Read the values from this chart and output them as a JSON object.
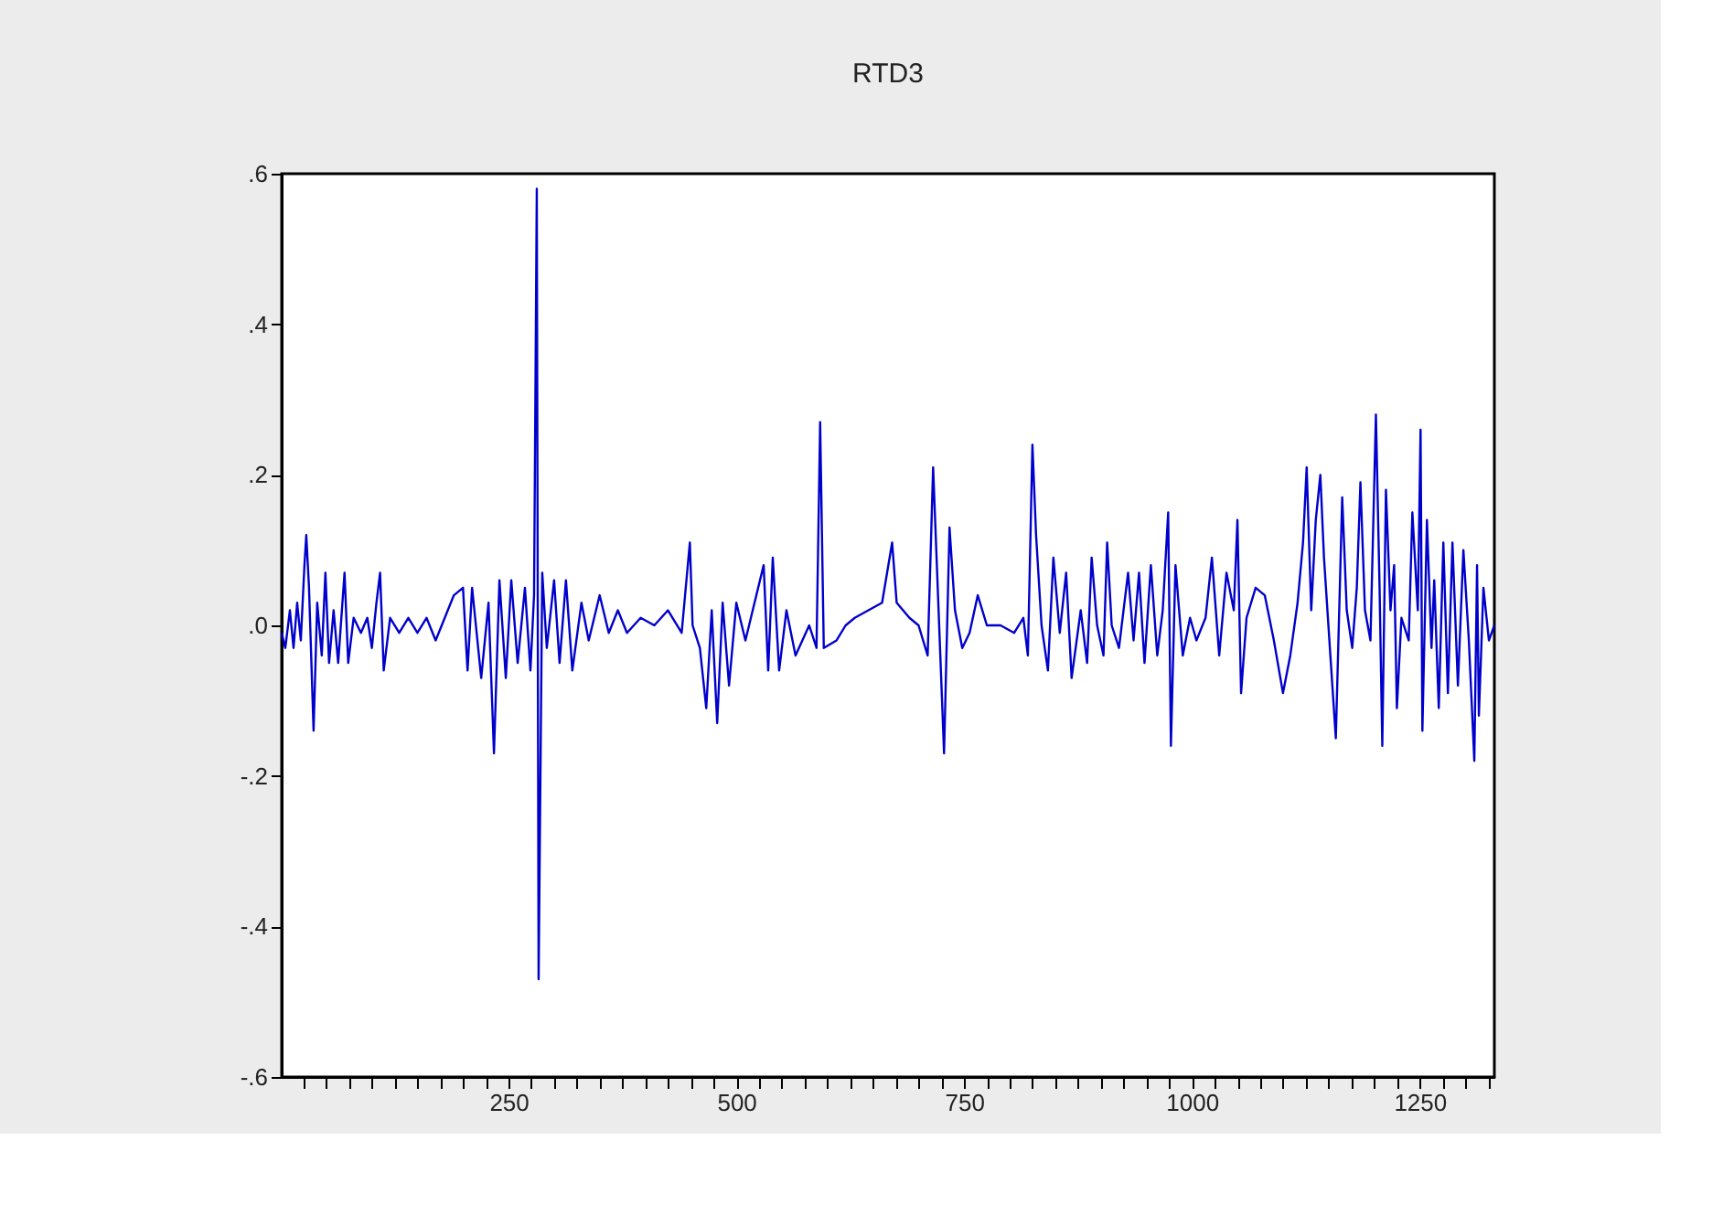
{
  "chart_data": {
    "type": "line",
    "title": "RTD3",
    "x": [
      1,
      5,
      10,
      14,
      18,
      22,
      26,
      28,
      31,
      36,
      40,
      45,
      49,
      53,
      58,
      63,
      70,
      74,
      80,
      88,
      95,
      100,
      105,
      109,
      113,
      120,
      130,
      140,
      150,
      160,
      170,
      180,
      190,
      200,
      205,
      210,
      220,
      228,
      234,
      240,
      247,
      253,
      260,
      268,
      274,
      278,
      281,
      283,
      287,
      292,
      300,
      306,
      313,
      320,
      330,
      338,
      350,
      360,
      370,
      380,
      395,
      410,
      425,
      440,
      449,
      452,
      460,
      467,
      473,
      479,
      485,
      492,
      500,
      510,
      520,
      530,
      535,
      540,
      547,
      555,
      565,
      580,
      588,
      592,
      596,
      610,
      620,
      630,
      645,
      660,
      671,
      676,
      690,
      700,
      710,
      716,
      722,
      728,
      734,
      740,
      748,
      756,
      765,
      775,
      790,
      805,
      815,
      820,
      825,
      829,
      835,
      842,
      848,
      855,
      862,
      868,
      878,
      885,
      890,
      896,
      903,
      907,
      912,
      920,
      930,
      936,
      942,
      948,
      955,
      962,
      968,
      974,
      977,
      982,
      990,
      998,
      1005,
      1015,
      1022,
      1030,
      1038,
      1046,
      1050,
      1054,
      1060,
      1070,
      1080,
      1090,
      1100,
      1108,
      1116,
      1122,
      1126,
      1131,
      1136,
      1141,
      1145,
      1152,
      1158,
      1165,
      1170,
      1176,
      1181,
      1185,
      1190,
      1196,
      1202,
      1206,
      1209,
      1213,
      1218,
      1222,
      1225,
      1230,
      1238,
      1242,
      1248,
      1251,
      1253,
      1258,
      1263,
      1266,
      1271,
      1276,
      1281,
      1286,
      1292,
      1298,
      1304,
      1310,
      1313,
      1315,
      1320,
      1326,
      1332
    ],
    "series": [
      {
        "color": "#0000cc",
        "values": [
          -0.01,
          -0.03,
          0.02,
          -0.03,
          0.03,
          -0.02,
          0.08,
          0.12,
          0.05,
          -0.14,
          0.03,
          -0.04,
          0.07,
          -0.05,
          0.02,
          -0.05,
          0.07,
          -0.05,
          0.01,
          -0.01,
          0.01,
          -0.03,
          0.03,
          0.07,
          -0.06,
          0.01,
          -0.01,
          0.01,
          -0.01,
          0.01,
          -0.02,
          0.01,
          0.04,
          0.05,
          -0.06,
          0.05,
          -0.07,
          0.03,
          -0.17,
          0.06,
          -0.07,
          0.06,
          -0.05,
          0.05,
          -0.06,
          0.04,
          0.58,
          -0.47,
          0.07,
          -0.03,
          0.06,
          -0.05,
          0.06,
          -0.06,
          0.03,
          -0.02,
          0.04,
          -0.01,
          0.02,
          -0.01,
          0.01,
          0.0,
          0.02,
          -0.01,
          0.11,
          0.0,
          -0.03,
          -0.11,
          0.02,
          -0.13,
          0.03,
          -0.08,
          0.03,
          -0.02,
          0.03,
          0.08,
          -0.06,
          0.09,
          -0.06,
          0.02,
          -0.04,
          0.0,
          -0.03,
          0.27,
          -0.03,
          -0.02,
          0.0,
          0.01,
          0.02,
          0.03,
          0.11,
          0.03,
          0.01,
          0.0,
          -0.04,
          0.21,
          0.02,
          -0.17,
          0.13,
          0.02,
          -0.03,
          -0.01,
          0.04,
          0.0,
          0.0,
          -0.01,
          0.01,
          -0.04,
          0.24,
          0.12,
          0.0,
          -0.06,
          0.09,
          -0.01,
          0.07,
          -0.07,
          0.02,
          -0.05,
          0.09,
          0.0,
          -0.04,
          0.11,
          0.0,
          -0.03,
          0.07,
          -0.02,
          0.07,
          -0.05,
          0.08,
          -0.04,
          0.02,
          0.15,
          -0.16,
          0.08,
          -0.04,
          0.01,
          -0.02,
          0.01,
          0.09,
          -0.04,
          0.07,
          0.02,
          0.14,
          -0.09,
          0.01,
          0.05,
          0.04,
          -0.02,
          -0.09,
          -0.04,
          0.03,
          0.11,
          0.21,
          0.02,
          0.14,
          0.2,
          0.09,
          -0.04,
          -0.15,
          0.17,
          0.02,
          -0.03,
          0.05,
          0.19,
          0.02,
          -0.02,
          0.28,
          0.05,
          -0.16,
          0.18,
          0.02,
          0.08,
          -0.11,
          0.01,
          -0.02,
          0.15,
          0.02,
          0.26,
          -0.14,
          0.14,
          -0.03,
          0.06,
          -0.11,
          0.11,
          -0.09,
          0.11,
          -0.08,
          0.1,
          -0.02,
          -0.18,
          0.08,
          -0.12,
          0.05,
          -0.02,
          0.0
        ]
      }
    ],
    "xlim": [
      1,
      1332
    ],
    "xticks": [
      {
        "value": 25,
        "label": null
      },
      {
        "value": 50,
        "label": null
      },
      {
        "value": 75,
        "label": null
      },
      {
        "value": 100,
        "label": null
      },
      {
        "value": 125,
        "label": null
      },
      {
        "value": 150,
        "label": null
      },
      {
        "value": 175,
        "label": null
      },
      {
        "value": 200,
        "label": null
      },
      {
        "value": 225,
        "label": null
      },
      250,
      {
        "value": 275,
        "label": null
      },
      {
        "value": 300,
        "label": null
      },
      {
        "value": 325,
        "label": null
      },
      {
        "value": 350,
        "label": null
      },
      {
        "value": 375,
        "label": null
      },
      {
        "value": 400,
        "label": null
      },
      {
        "value": 425,
        "label": null
      },
      {
        "value": 450,
        "label": null
      },
      {
        "value": 475,
        "label": null
      },
      500,
      {
        "value": 525,
        "label": null
      },
      {
        "value": 550,
        "label": null
      },
      {
        "value": 575,
        "label": null
      },
      {
        "value": 600,
        "label": null
      },
      {
        "value": 625,
        "label": null
      },
      {
        "value": 650,
        "label": null
      },
      {
        "value": 675,
        "label": null
      },
      {
        "value": 700,
        "label": null
      },
      {
        "value": 725,
        "label": null
      },
      750,
      {
        "value": 775,
        "label": null
      },
      {
        "value": 800,
        "label": null
      },
      {
        "value": 825,
        "label": null
      },
      {
        "value": 850,
        "label": null
      },
      {
        "value": 875,
        "label": null
      },
      {
        "value": 900,
        "label": null
      },
      {
        "value": 925,
        "label": null
      },
      {
        "value": 950,
        "label": null
      },
      {
        "value": 975,
        "label": null
      },
      1000,
      {
        "value": 1025,
        "label": null
      },
      {
        "value": 1050,
        "label": null
      },
      {
        "value": 1075,
        "label": null
      },
      {
        "value": 1100,
        "label": null
      },
      {
        "value": 1125,
        "label": null
      },
      {
        "value": 1150,
        "label": null
      },
      {
        "value": 1175,
        "label": null
      },
      {
        "value": 1200,
        "label": null
      },
      {
        "value": 1225,
        "label": null
      },
      1250,
      {
        "value": 1275,
        "label": null
      },
      {
        "value": 1300,
        "label": null
      },
      {
        "value": 1325,
        "label": null
      }
    ],
    "ylim": [
      -0.6,
      0.6
    ],
    "yticks": [
      {
        "value": -0.6,
        "label": "-.6"
      },
      {
        "value": -0.4,
        "label": "-.4"
      },
      {
        "value": -0.2,
        "label": "-.2"
      },
      {
        "value": 0,
        "label": ".0"
      },
      {
        "value": 0.2,
        "label": ".2"
      },
      {
        "value": 0.4,
        "label": ".4"
      },
      {
        "value": 0.6,
        "label": ".6"
      }
    ],
    "grid": false
  }
}
